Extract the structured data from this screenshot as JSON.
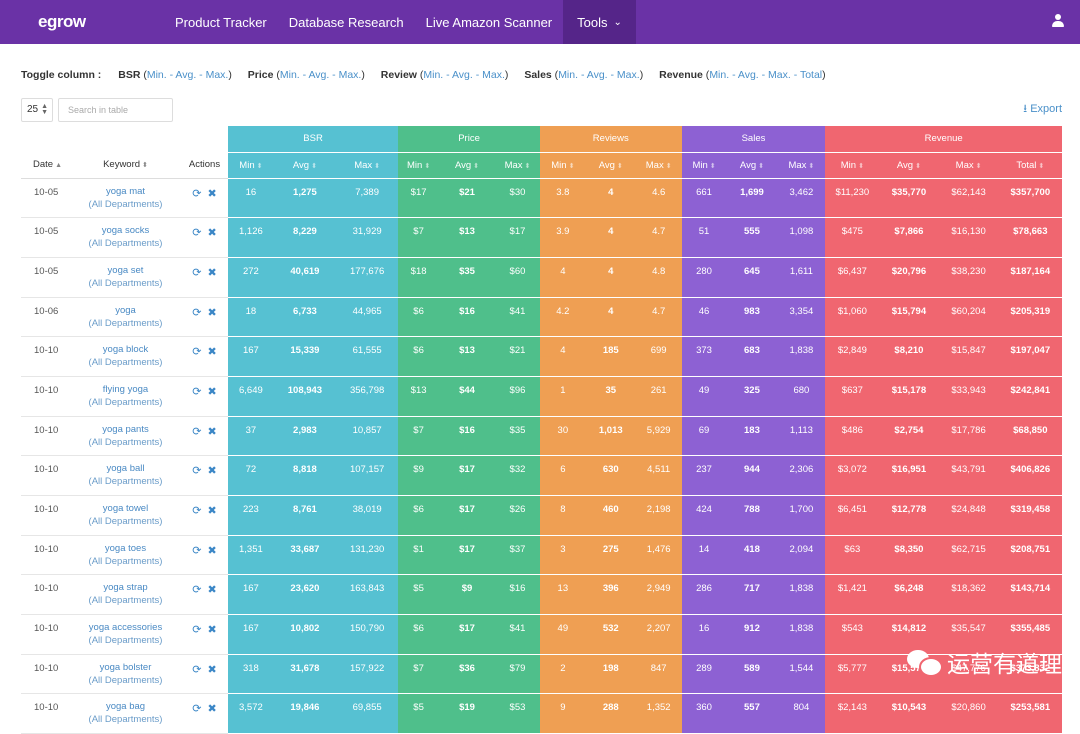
{
  "nav": {
    "logo": "egrow",
    "links": [
      "Product Tracker",
      "Database Research",
      "Live Amazon Scanner",
      "Tools"
    ]
  },
  "toggle": {
    "label": "Toggle column :",
    "groups": [
      {
        "name": "BSR",
        "opts": "Min. - Avg. - Max."
      },
      {
        "name": "Price",
        "opts": "Min. - Avg. - Max."
      },
      {
        "name": "Review",
        "opts": "Min. - Avg. - Max."
      },
      {
        "name": "Sales",
        "opts": "Min. - Avg. - Max."
      },
      {
        "name": "Revenue",
        "opts": "Min. - Avg. - Max. - Total"
      }
    ]
  },
  "controls": {
    "page_size": "25",
    "search_placeholder": "Search in table",
    "export": "Export"
  },
  "table": {
    "groups": [
      "BSR",
      "Price",
      "Reviews",
      "Sales",
      "Revenue"
    ],
    "cols": {
      "date": "Date",
      "keyword": "Keyword",
      "actions": "Actions",
      "min": "Min",
      "avg": "Avg",
      "max": "Max",
      "total": "Total"
    },
    "rows": [
      {
        "date": "10-05",
        "kw": "yoga mat",
        "dept": "(All Departments)",
        "v": [
          "16",
          "1,275",
          "7,389",
          "$17",
          "$21",
          "$30",
          "3.8",
          "4",
          "4.6",
          "661",
          "1,699",
          "3,462",
          "$11,230",
          "$35,770",
          "$62,143",
          "$357,700"
        ]
      },
      {
        "date": "10-05",
        "kw": "yoga socks",
        "dept": "(All Departments)",
        "v": [
          "1,126",
          "8,229",
          "31,929",
          "$7",
          "$13",
          "$17",
          "3.9",
          "4",
          "4.7",
          "51",
          "555",
          "1,098",
          "$475",
          "$7,866",
          "$16,130",
          "$78,663"
        ]
      },
      {
        "date": "10-05",
        "kw": "yoga set",
        "dept": "(All Departments)",
        "v": [
          "272",
          "40,619",
          "177,676",
          "$18",
          "$35",
          "$60",
          "4",
          "4",
          "4.8",
          "280",
          "645",
          "1,611",
          "$6,437",
          "$20,796",
          "$38,230",
          "$187,164"
        ]
      },
      {
        "date": "10-06",
        "kw": "yoga",
        "dept": "(All Departments)",
        "v": [
          "18",
          "6,733",
          "44,965",
          "$6",
          "$16",
          "$41",
          "4.2",
          "4",
          "4.7",
          "46",
          "983",
          "3,354",
          "$1,060",
          "$15,794",
          "$60,204",
          "$205,319"
        ]
      },
      {
        "date": "10-10",
        "kw": "yoga block",
        "dept": "(All Departments)",
        "v": [
          "167",
          "15,339",
          "61,555",
          "$6",
          "$13",
          "$21",
          "4",
          "185",
          "699",
          "373",
          "683",
          "1,838",
          "$2,849",
          "$8,210",
          "$15,847",
          "$197,047"
        ]
      },
      {
        "date": "10-10",
        "kw": "flying yoga",
        "dept": "(All Departments)",
        "v": [
          "6,649",
          "108,943",
          "356,798",
          "$13",
          "$44",
          "$96",
          "1",
          "35",
          "261",
          "49",
          "325",
          "680",
          "$637",
          "$15,178",
          "$33,943",
          "$242,841"
        ]
      },
      {
        "date": "10-10",
        "kw": "yoga pants",
        "dept": "(All Departments)",
        "v": [
          "37",
          "2,983",
          "10,857",
          "$7",
          "$16",
          "$35",
          "30",
          "1,013",
          "5,929",
          "69",
          "183",
          "1,113",
          "$486",
          "$2,754",
          "$17,786",
          "$68,850"
        ]
      },
      {
        "date": "10-10",
        "kw": "yoga ball",
        "dept": "(All Departments)",
        "v": [
          "72",
          "8,818",
          "107,157",
          "$9",
          "$17",
          "$32",
          "6",
          "630",
          "4,511",
          "237",
          "944",
          "2,306",
          "$3,072",
          "$16,951",
          "$43,791",
          "$406,826"
        ]
      },
      {
        "date": "10-10",
        "kw": "yoga towel",
        "dept": "(All Departments)",
        "v": [
          "223",
          "8,761",
          "38,019",
          "$6",
          "$17",
          "$26",
          "8",
          "460",
          "2,198",
          "424",
          "788",
          "1,700",
          "$6,451",
          "$12,778",
          "$24,848",
          "$319,458"
        ]
      },
      {
        "date": "10-10",
        "kw": "yoga toes",
        "dept": "(All Departments)",
        "v": [
          "1,351",
          "33,687",
          "131,230",
          "$1",
          "$17",
          "$37",
          "3",
          "275",
          "1,476",
          "14",
          "418",
          "2,094",
          "$63",
          "$8,350",
          "$62,715",
          "$208,751"
        ]
      },
      {
        "date": "10-10",
        "kw": "yoga strap",
        "dept": "(All Departments)",
        "v": [
          "167",
          "23,620",
          "163,843",
          "$5",
          "$9",
          "$16",
          "13",
          "396",
          "2,949",
          "286",
          "717",
          "1,838",
          "$1,421",
          "$6,248",
          "$18,362",
          "$143,714"
        ]
      },
      {
        "date": "10-10",
        "kw": "yoga accessories",
        "dept": "(All Departments)",
        "v": [
          "167",
          "10,802",
          "150,790",
          "$6",
          "$17",
          "$41",
          "49",
          "532",
          "2,207",
          "16",
          "912",
          "1,838",
          "$543",
          "$14,812",
          "$35,547",
          "$355,485"
        ]
      },
      {
        "date": "10-10",
        "kw": "yoga bolster",
        "dept": "(All Departments)",
        "v": [
          "318",
          "31,678",
          "157,922",
          "$7",
          "$36",
          "$79",
          "2",
          "198",
          "847",
          "289",
          "589",
          "1,544",
          "$5,777",
          "$15,578",
          "$47,776",
          "$373,832"
        ]
      },
      {
        "date": "10-10",
        "kw": "yoga bag",
        "dept": "(All Departments)",
        "v": [
          "3,572",
          "19,846",
          "69,855",
          "$5",
          "$19",
          "$53",
          "9",
          "288",
          "1,352",
          "360",
          "557",
          "804",
          "$2,143",
          "$10,543",
          "$20,860",
          "$253,581"
        ]
      }
    ]
  },
  "watermark": "运营有道理",
  "colors": {
    "nav": "#6a32a6",
    "bsr": "#56c1d2",
    "price": "#4fbf8b",
    "reviews": "#ef9f53",
    "sales": "#8d61d3",
    "revenue": "#f06670",
    "link": "#4a90c9"
  }
}
